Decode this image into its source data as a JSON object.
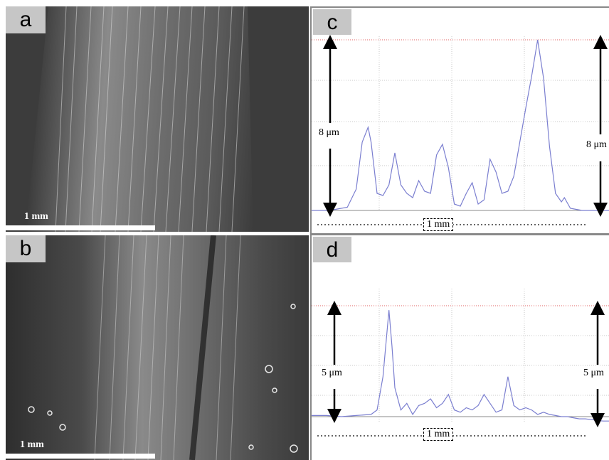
{
  "panels": {
    "a": {
      "label": "a",
      "scale_label": "1 mm"
    },
    "b": {
      "label": "b",
      "scale_label": "1 mm"
    },
    "c": {
      "label": "c",
      "height_label_left": "8 μm",
      "height_label_right": "8 μm",
      "scale_label": "1 mm"
    },
    "d": {
      "label": "d",
      "height_label_left": "5 μm",
      "height_label_right": "5 μm",
      "scale_label": "1 mm"
    }
  },
  "colors": {
    "profile_line": "#7b7fd0",
    "peak_guide": "#e06060",
    "grid": "#c8c8c8",
    "micrograph_bg": "#3c3c3c",
    "label_bg": "#c6c6c6"
  },
  "chart_data": [
    {
      "type": "line",
      "panel": "c",
      "xlabel": "",
      "ylabel": "",
      "scale_length": "1 mm",
      "height_range": "8 μm",
      "ylim": [
        0,
        8
      ],
      "x": [
        0,
        0.04,
        0.08,
        0.12,
        0.15,
        0.17,
        0.19,
        0.2,
        0.22,
        0.24,
        0.26,
        0.28,
        0.3,
        0.32,
        0.34,
        0.36,
        0.38,
        0.4,
        0.42,
        0.44,
        0.46,
        0.48,
        0.5,
        0.52,
        0.54,
        0.56,
        0.58,
        0.6,
        0.62,
        0.64,
        0.66,
        0.68,
        0.7,
        0.72,
        0.74,
        0.76,
        0.78,
        0.8,
        0.82,
        0.84,
        0.85,
        0.87,
        0.89,
        0.91,
        0.93,
        0.95,
        0.97,
        1.0
      ],
      "y": [
        0,
        0,
        0.05,
        0.15,
        1,
        3.2,
        3.9,
        3.2,
        0.8,
        0.7,
        1.2,
        2.7,
        1.2,
        0.8,
        0.6,
        1.4,
        0.9,
        0.8,
        2.6,
        3.1,
        2.0,
        0.3,
        0.2,
        0.8,
        1.3,
        0.3,
        0.5,
        2.4,
        1.8,
        0.8,
        0.9,
        1.6,
        3.2,
        4.8,
        6.3,
        8.0,
        6.2,
        3.0,
        0.8,
        0.4,
        0.6,
        0.1,
        0.05,
        0,
        0,
        0,
        0,
        0
      ]
    },
    {
      "type": "line",
      "panel": "d",
      "xlabel": "",
      "ylabel": "",
      "scale_length": "1 mm",
      "height_range": "5 μm",
      "ylim": [
        0,
        5
      ],
      "x": [
        0,
        0.05,
        0.1,
        0.15,
        0.2,
        0.22,
        0.24,
        0.26,
        0.27,
        0.28,
        0.3,
        0.32,
        0.34,
        0.36,
        0.38,
        0.4,
        0.42,
        0.44,
        0.46,
        0.48,
        0.5,
        0.52,
        0.54,
        0.56,
        0.58,
        0.6,
        0.62,
        0.64,
        0.66,
        0.68,
        0.7,
        0.72,
        0.74,
        0.76,
        0.78,
        0.8,
        0.82,
        0.84,
        0.86,
        0.88,
        0.9,
        0.92,
        0.95,
        0.98,
        1.0
      ],
      "y": [
        0.05,
        0.05,
        0,
        0.05,
        0.1,
        0.3,
        1.8,
        4.8,
        3.2,
        1.3,
        0.3,
        0.6,
        0.1,
        0.5,
        0.6,
        0.8,
        0.4,
        0.6,
        1.0,
        0.3,
        0.2,
        0.4,
        0.3,
        0.5,
        1.0,
        0.6,
        0.2,
        0.3,
        1.8,
        0.5,
        0.3,
        0.4,
        0.3,
        0.1,
        0.2,
        0.1,
        0.05,
        0,
        0,
        -0.05,
        -0.1,
        -0.1,
        -0.15,
        -0.2,
        -0.2
      ]
    }
  ]
}
